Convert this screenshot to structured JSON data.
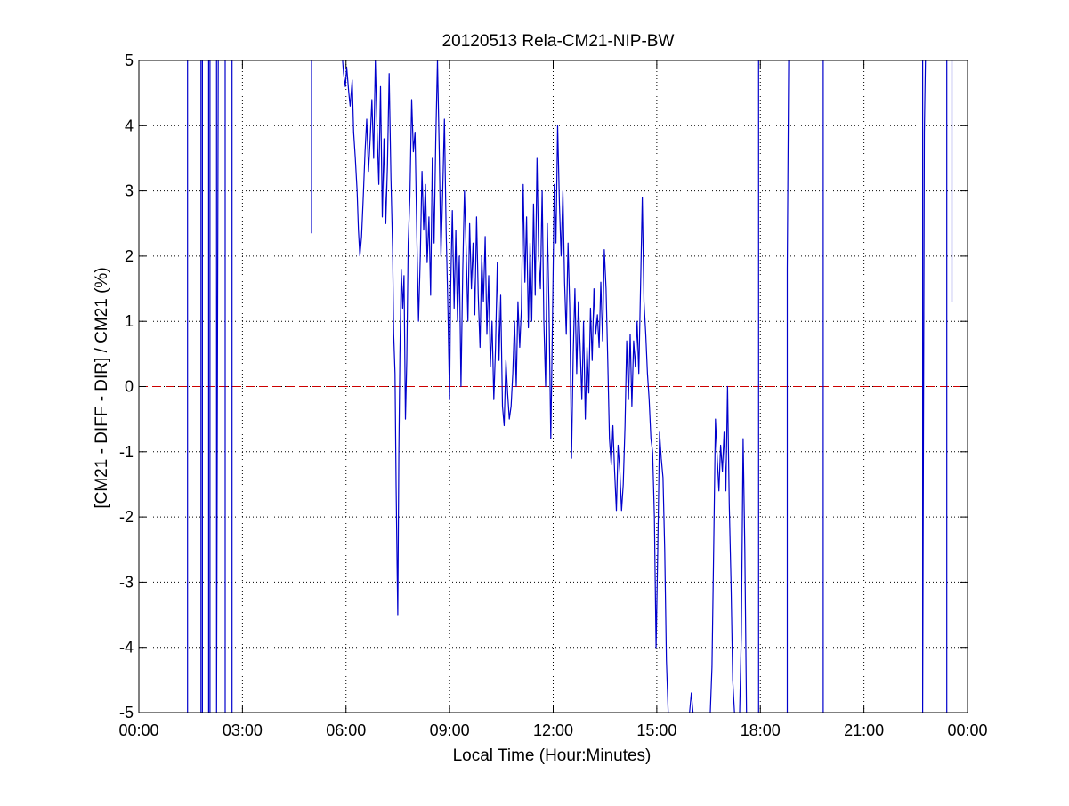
{
  "chart_data": {
    "type": "line",
    "title": "20120513 Rela-CM21-NIP-BW",
    "xlabel": "Local Time (Hour:Minutes)",
    "ylabel": "[CM21 - DIFF - DIR] / CM21 (%)",
    "xlim": [
      0,
      24
    ],
    "ylim": [
      -5,
      5
    ],
    "x_ticks": [
      0,
      3,
      6,
      9,
      12,
      15,
      18,
      21,
      24
    ],
    "x_tick_labels": [
      "00:00",
      "03:00",
      "06:00",
      "09:00",
      "12:00",
      "15:00",
      "18:00",
      "21:00",
      "00:00"
    ],
    "y_ticks": [
      -5,
      -4,
      -3,
      -2,
      -1,
      0,
      1,
      2,
      3,
      4,
      5
    ],
    "y_tick_labels": [
      "-5",
      "-4",
      "-3",
      "-2",
      "-1",
      "0",
      "1",
      "2",
      "3",
      "4",
      "5"
    ],
    "grid": true,
    "reference_line": {
      "y": 0,
      "color": "#cc0000",
      "style": "dashed"
    },
    "colors": {
      "series": "#0000cc",
      "axes": "#000000",
      "grid": "#000000"
    },
    "series": [
      {
        "color": "#0000cc",
        "segments": [
          [
            [
              1.41,
              -5
            ],
            [
              1.41,
              5
            ]
          ],
          [
            [
              1.8,
              5
            ],
            [
              1.8,
              -5
            ],
            [
              1.84,
              -5
            ],
            [
              1.84,
              5
            ]
          ],
          [
            [
              2.02,
              -5
            ],
            [
              2.02,
              5
            ],
            [
              2.06,
              5
            ],
            [
              2.06,
              -5
            ]
          ],
          [
            [
              2.25,
              5
            ],
            [
              2.25,
              -5
            ],
            [
              2.3,
              5
            ]
          ],
          [
            [
              2.5,
              -5
            ],
            [
              2.5,
              5
            ]
          ],
          [
            [
              2.7,
              5
            ],
            [
              2.7,
              -5
            ]
          ],
          [
            [
              5.0,
              2.35
            ],
            [
              5.0,
              5.0
            ]
          ],
          [
            [
              5.9,
              5.0
            ],
            [
              5.93,
              4.8
            ],
            [
              5.98,
              4.6
            ],
            [
              6.02,
              4.9
            ],
            [
              6.08,
              4.5
            ],
            [
              6.12,
              4.3
            ],
            [
              6.18,
              4.7
            ],
            [
              6.22,
              3.9
            ],
            [
              6.27,
              3.5
            ],
            [
              6.32,
              3.0
            ],
            [
              6.36,
              2.4
            ],
            [
              6.4,
              2.0
            ],
            [
              6.45,
              2.3
            ],
            [
              6.5,
              2.9
            ],
            [
              6.55,
              3.6
            ],
            [
              6.6,
              4.1
            ],
            [
              6.65,
              3.3
            ],
            [
              6.7,
              3.8
            ],
            [
              6.75,
              4.4
            ],
            [
              6.8,
              3.5
            ],
            [
              6.85,
              5.0
            ],
            [
              6.9,
              3.9
            ],
            [
              6.95,
              3.1
            ],
            [
              7.0,
              4.6
            ],
            [
              7.05,
              2.6
            ],
            [
              7.1,
              3.8
            ],
            [
              7.15,
              2.5
            ],
            [
              7.2,
              3.4
            ],
            [
              7.25,
              4.8
            ],
            [
              7.3,
              3.2
            ],
            [
              7.35,
              2.1
            ],
            [
              7.38,
              0.8
            ],
            [
              7.42,
              0.2
            ],
            [
              7.45,
              -1.5
            ],
            [
              7.48,
              -2.8
            ],
            [
              7.5,
              -3.5
            ],
            [
              7.53,
              -1.0
            ],
            [
              7.56,
              0.5
            ],
            [
              7.6,
              1.8
            ],
            [
              7.64,
              1.2
            ],
            [
              7.68,
              1.7
            ],
            [
              7.72,
              -0.5
            ],
            [
              7.76,
              0.4
            ],
            [
              7.8,
              2.2
            ],
            [
              7.85,
              2.9
            ],
            [
              7.9,
              4.4
            ],
            [
              7.95,
              3.6
            ],
            [
              8.0,
              3.9
            ],
            [
              8.05,
              2.3
            ],
            [
              8.1,
              1.0
            ],
            [
              8.15,
              2.0
            ],
            [
              8.2,
              3.3
            ],
            [
              8.25,
              2.4
            ],
            [
              8.3,
              3.1
            ],
            [
              8.35,
              1.9
            ],
            [
              8.4,
              2.6
            ],
            [
              8.45,
              1.4
            ],
            [
              8.5,
              3.5
            ],
            [
              8.55,
              2.2
            ],
            [
              8.6,
              3.8
            ],
            [
              8.65,
              5.0
            ],
            [
              8.7,
              3.6
            ],
            [
              8.75,
              2.0
            ],
            [
              8.8,
              3.0
            ],
            [
              8.85,
              4.1
            ],
            [
              8.9,
              2.4
            ],
            [
              8.95,
              1.2
            ],
            [
              9.0,
              -0.2
            ],
            [
              9.03,
              1.5
            ],
            [
              9.08,
              2.7
            ],
            [
              9.13,
              1.2
            ],
            [
              9.18,
              2.4
            ],
            [
              9.23,
              1.0
            ],
            [
              9.28,
              2.0
            ],
            [
              9.33,
              0.0
            ],
            [
              9.38,
              1.8
            ],
            [
              9.43,
              3.0
            ],
            [
              9.48,
              2.1
            ],
            [
              9.53,
              1.0
            ],
            [
              9.58,
              2.5
            ],
            [
              9.63,
              1.5
            ],
            [
              9.68,
              2.2
            ],
            [
              9.73,
              1.1
            ],
            [
              9.78,
              2.6
            ],
            [
              9.83,
              1.4
            ],
            [
              9.88,
              0.6
            ],
            [
              9.93,
              2.0
            ],
            [
              9.98,
              1.3
            ],
            [
              10.03,
              2.3
            ],
            [
              10.08,
              0.8
            ],
            [
              10.13,
              1.7
            ],
            [
              10.18,
              0.3
            ],
            [
              10.23,
              1.0
            ],
            [
              10.28,
              -0.2
            ],
            [
              10.33,
              0.6
            ],
            [
              10.38,
              1.9
            ],
            [
              10.43,
              0.4
            ],
            [
              10.48,
              1.4
            ],
            [
              10.53,
              -0.3
            ],
            [
              10.58,
              -0.6
            ],
            [
              10.63,
              0.4
            ],
            [
              10.68,
              -0.1
            ],
            [
              10.73,
              -0.5
            ],
            [
              10.78,
              -0.3
            ],
            [
              10.83,
              0.2
            ],
            [
              10.88,
              1.0
            ],
            [
              10.93,
              0.0
            ],
            [
              10.98,
              1.3
            ],
            [
              11.03,
              0.6
            ],
            [
              11.08,
              1.2
            ],
            [
              11.13,
              3.1
            ],
            [
              11.18,
              1.6
            ],
            [
              11.23,
              2.6
            ],
            [
              11.28,
              0.9
            ],
            [
              11.33,
              2.2
            ],
            [
              11.38,
              1.0
            ],
            [
              11.43,
              2.8
            ],
            [
              11.48,
              1.4
            ],
            [
              11.53,
              3.5
            ],
            [
              11.58,
              2.0
            ],
            [
              11.63,
              1.5
            ],
            [
              11.68,
              3.0
            ],
            [
              11.73,
              1.0
            ],
            [
              11.78,
              0.0
            ],
            [
              11.83,
              2.5
            ],
            [
              11.88,
              1.2
            ],
            [
              11.93,
              -0.8
            ],
            [
              11.98,
              1.0
            ],
            [
              12.03,
              3.1
            ],
            [
              12.08,
              2.2
            ],
            [
              12.13,
              4.0
            ],
            [
              12.18,
              2.8
            ],
            [
              12.23,
              2.0
            ],
            [
              12.28,
              3.0
            ],
            [
              12.33,
              1.6
            ],
            [
              12.38,
              0.8
            ],
            [
              12.43,
              2.2
            ],
            [
              12.48,
              1.2
            ],
            [
              12.53,
              -1.1
            ],
            [
              12.58,
              0.5
            ],
            [
              12.63,
              1.5
            ],
            [
              12.68,
              0.2
            ],
            [
              12.73,
              1.3
            ],
            [
              12.78,
              0.6
            ],
            [
              12.83,
              -0.2
            ],
            [
              12.88,
              1.0
            ],
            [
              12.93,
              -0.5
            ],
            [
              12.98,
              0.6
            ],
            [
              13.03,
              -0.1
            ],
            [
              13.08,
              1.2
            ],
            [
              13.13,
              0.4
            ],
            [
              13.18,
              1.5
            ],
            [
              13.23,
              0.8
            ],
            [
              13.28,
              1.1
            ],
            [
              13.33,
              0.6
            ],
            [
              13.38,
              1.6
            ],
            [
              13.43,
              0.7
            ],
            [
              13.48,
              2.1
            ],
            [
              13.53,
              1.5
            ],
            [
              13.58,
              0.4
            ],
            [
              13.63,
              -0.8
            ],
            [
              13.68,
              -1.2
            ],
            [
              13.73,
              -0.6
            ],
            [
              13.78,
              -1.3
            ],
            [
              13.83,
              -1.9
            ],
            [
              13.88,
              -0.9
            ],
            [
              13.93,
              -1.3
            ],
            [
              13.98,
              -1.9
            ],
            [
              14.03,
              -1.5
            ],
            [
              14.08,
              -0.6
            ],
            [
              14.13,
              0.7
            ],
            [
              14.18,
              -0.2
            ],
            [
              14.23,
              0.8
            ],
            [
              14.28,
              -0.3
            ],
            [
              14.33,
              0.7
            ],
            [
              14.38,
              0.3
            ],
            [
              14.43,
              1.0
            ],
            [
              14.48,
              0.2
            ],
            [
              14.53,
              1.5
            ],
            [
              14.58,
              2.9
            ],
            [
              14.63,
              1.3
            ],
            [
              14.68,
              0.8
            ],
            [
              14.73,
              0.2
            ],
            [
              14.78,
              -0.2
            ],
            [
              14.83,
              -0.8
            ],
            [
              14.88,
              -1.0
            ],
            [
              14.93,
              -2.0
            ],
            [
              14.98,
              -4.0
            ],
            [
              15.03,
              -2.5
            ],
            [
              15.08,
              -0.7
            ],
            [
              15.13,
              -1.1
            ],
            [
              15.18,
              -1.4
            ],
            [
              15.23,
              -2.5
            ],
            [
              15.28,
              -4.2
            ],
            [
              15.33,
              -5.0
            ]
          ],
          [
            [
              15.95,
              -5.0
            ],
            [
              16.0,
              -4.7
            ],
            [
              16.05,
              -5.0
            ]
          ],
          [
            [
              16.55,
              -5.0
            ],
            [
              16.6,
              -4.3
            ],
            [
              16.65,
              -2.4
            ],
            [
              16.7,
              -0.5
            ],
            [
              16.75,
              -1.1
            ],
            [
              16.8,
              -1.6
            ],
            [
              16.85,
              -0.9
            ],
            [
              16.9,
              -1.3
            ],
            [
              16.95,
              -0.7
            ],
            [
              17.0,
              -1.6
            ],
            [
              17.05,
              0.0
            ],
            [
              17.1,
              -1.8
            ],
            [
              17.15,
              -3.0
            ],
            [
              17.2,
              -4.5
            ],
            [
              17.25,
              -5.0
            ]
          ],
          [
            [
              17.4,
              -5.0
            ],
            [
              17.45,
              -3.8
            ],
            [
              17.5,
              -0.8
            ],
            [
              17.55,
              -2.5
            ],
            [
              17.6,
              -5.0
            ]
          ],
          [
            [
              17.95,
              -5
            ],
            [
              17.95,
              5
            ]
          ],
          [
            [
              18.78,
              -5
            ],
            [
              18.78,
              1.8
            ],
            [
              18.82,
              5
            ]
          ],
          [
            [
              19.82,
              -5
            ],
            [
              19.82,
              5
            ]
          ],
          [
            [
              22.7,
              5
            ],
            [
              22.7,
              -5
            ],
            [
              22.75,
              3.9
            ],
            [
              22.78,
              5
            ]
          ],
          [
            [
              23.4,
              -5
            ],
            [
              23.4,
              5
            ]
          ],
          [
            [
              23.55,
              5
            ],
            [
              23.55,
              1.3
            ]
          ]
        ]
      }
    ]
  }
}
